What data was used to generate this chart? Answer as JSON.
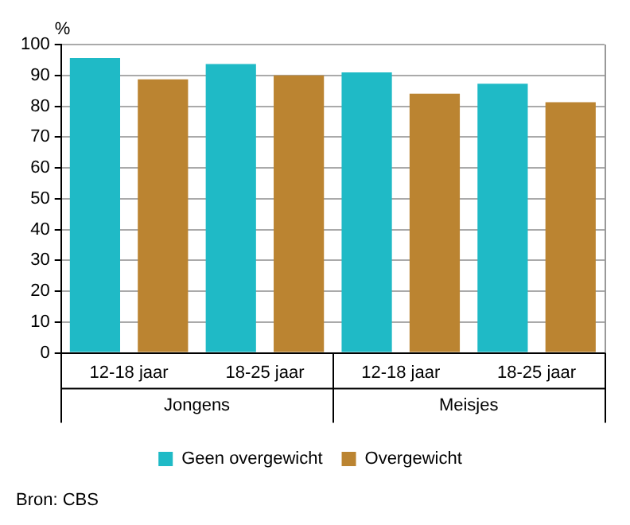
{
  "chart_data": {
    "type": "bar",
    "ylabel": "%",
    "categories": [
      "12-18 jaar",
      "18-25 jaar",
      "12-18 jaar",
      "18-25 jaar"
    ],
    "series": [
      {
        "name": "Geen overgewicht",
        "color": "#1fbac6",
        "values": [
          95.6,
          93.7,
          91.0,
          87.3
        ]
      },
      {
        "name": "Overgewicht",
        "color": "#bb8431",
        "values": [
          88.7,
          90.0,
          84.1,
          81.3
        ]
      }
    ],
    "ylim": [
      0,
      100
    ],
    "yticks": [
      0,
      10,
      20,
      30,
      40,
      50,
      60,
      70,
      80,
      90,
      100
    ],
    "grid": "y",
    "legend": "bottom",
    "annotations": [
      "Jongens",
      "Meisjes",
      "Bron: CBS"
    ]
  }
}
